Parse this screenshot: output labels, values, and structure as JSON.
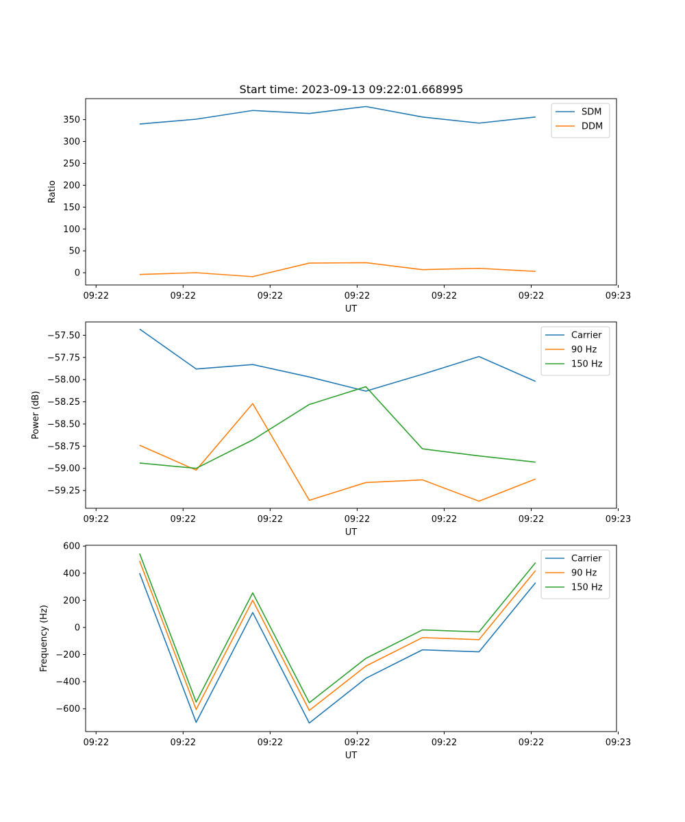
{
  "figure": {
    "title": "Start time: 2023-09-13 09:22:01.668995"
  },
  "colors": {
    "blue": "#1f77b4",
    "orange": "#ff7f0e",
    "green": "#2ca02c",
    "axis": "#000000",
    "legend_border": "#cccccc"
  },
  "chart_data": [
    {
      "type": "line",
      "title": "Start time: 2023-09-13 09:22:01.668995",
      "xlabel": "UT",
      "ylabel": "Ratio",
      "x": [
        0.5,
        1.15,
        1.8,
        2.45,
        3.1,
        3.75,
        4.4,
        5.05
      ],
      "xlim": [
        -0.12,
        5.98
      ],
      "xticks": [
        0,
        1,
        2,
        3,
        4,
        5,
        6
      ],
      "xticklabels": [
        "09:22",
        "09:22",
        "09:22",
        "09:22",
        "09:22",
        "09:22",
        "09:23"
      ],
      "ylim": [
        -28,
        398
      ],
      "yticks": [
        0,
        50,
        100,
        150,
        200,
        250,
        300,
        350
      ],
      "yticklabels": [
        "0",
        "50",
        "100",
        "150",
        "200",
        "250",
        "300",
        "350"
      ],
      "legend": "top-right",
      "series": [
        {
          "name": "SDM",
          "color": "#1f77b4",
          "values": [
            340,
            351,
            371,
            364,
            380,
            356,
            342,
            356
          ]
        },
        {
          "name": "DDM",
          "color": "#ff7f0e",
          "values": [
            -4,
            0,
            -9,
            22,
            23,
            7,
            10,
            3
          ]
        }
      ]
    },
    {
      "type": "line",
      "xlabel": "UT",
      "ylabel": "Power (dB)",
      "x": [
        0.5,
        1.15,
        1.8,
        2.45,
        3.1,
        3.75,
        4.4,
        5.05
      ],
      "xlim": [
        -0.12,
        5.98
      ],
      "xticks": [
        0,
        1,
        2,
        3,
        4,
        5,
        6
      ],
      "xticklabels": [
        "09:22",
        "09:22",
        "09:22",
        "09:22",
        "09:22",
        "09:22",
        "09:23"
      ],
      "ylim": [
        -59.45,
        -57.35
      ],
      "yticks": [
        -57.5,
        -57.75,
        -58.0,
        -58.25,
        -58.5,
        -58.75,
        -59.0,
        -59.25
      ],
      "yticklabels": [
        "−57.50",
        "−57.75",
        "−58.00",
        "−58.25",
        "−58.50",
        "−58.75",
        "−59.00",
        "−59.25"
      ],
      "legend": "top-right",
      "series": [
        {
          "name": "Carrier",
          "color": "#1f77b4",
          "values": [
            -57.43,
            -57.88,
            -57.83,
            -57.97,
            -58.13,
            -57.94,
            -57.74,
            -58.02
          ]
        },
        {
          "name": "90 Hz",
          "color": "#ff7f0e",
          "values": [
            -58.74,
            -59.02,
            -58.27,
            -59.36,
            -59.16,
            -59.13,
            -59.37,
            -59.12
          ]
        },
        {
          "name": "150 Hz",
          "color": "#2ca02c",
          "values": [
            -58.94,
            -59.0,
            -58.68,
            -58.28,
            -58.08,
            -58.78,
            -58.86,
            -58.93
          ]
        }
      ]
    },
    {
      "type": "line",
      "xlabel": "UT",
      "ylabel": "Frequency (Hz)",
      "x": [
        0.5,
        1.15,
        1.8,
        2.45,
        3.1,
        3.75,
        4.4,
        5.05
      ],
      "xlim": [
        -0.12,
        5.98
      ],
      "xticks": [
        0,
        1,
        2,
        3,
        4,
        5,
        6
      ],
      "xticklabels": [
        "09:22",
        "09:22",
        "09:22",
        "09:22",
        "09:22",
        "09:22",
        "09:23"
      ],
      "ylim": [
        -768,
        606
      ],
      "yticks": [
        600,
        400,
        200,
        0,
        -200,
        -400,
        -600
      ],
      "yticklabels": [
        "600",
        "400",
        "200",
        "0",
        "−200",
        "−400",
        "−600"
      ],
      "legend": "top-right",
      "series": [
        {
          "name": "Carrier",
          "color": "#1f77b4",
          "values": [
            400,
            -700,
            110,
            -705,
            -375,
            -165,
            -180,
            330
          ]
        },
        {
          "name": "90 Hz",
          "color": "#ff7f0e",
          "values": [
            490,
            -605,
            200,
            -612,
            -285,
            -75,
            -90,
            420
          ]
        },
        {
          "name": "150 Hz",
          "color": "#2ca02c",
          "values": [
            545,
            -550,
            255,
            -555,
            -228,
            -18,
            -33,
            478
          ]
        }
      ]
    }
  ]
}
